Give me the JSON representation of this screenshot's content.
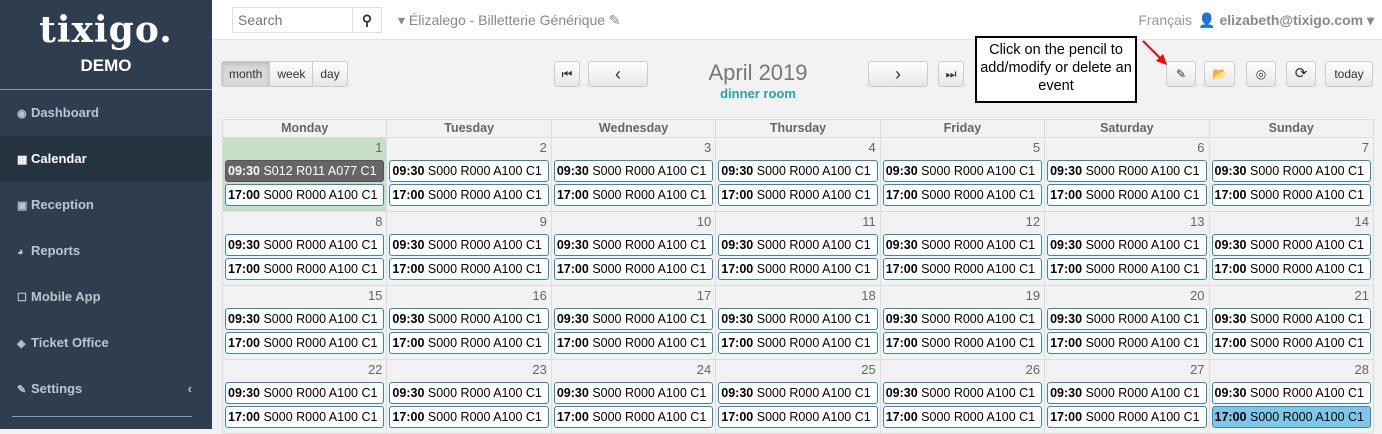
{
  "sidebar": {
    "brand": "tixigo.",
    "demo": "DEMO",
    "items": [
      {
        "label": "Dashboard",
        "icon": "dashboard-icon",
        "glyph": "◉"
      },
      {
        "label": "Calendar",
        "icon": "calendar-icon",
        "glyph": "▦",
        "active": true
      },
      {
        "label": "Reception",
        "icon": "reception-icon",
        "glyph": "▣"
      },
      {
        "label": "Reports",
        "icon": "pie-chart-icon",
        "glyph": "◕"
      },
      {
        "label": "Mobile App",
        "icon": "mobile-icon",
        "glyph": "☐"
      },
      {
        "label": "Ticket Office",
        "icon": "ticket-icon",
        "glyph": "◈"
      },
      {
        "label": "Settings",
        "icon": "wrench-icon",
        "glyph": "✎",
        "chevron": "‹"
      }
    ]
  },
  "topbar": {
    "search_placeholder": "Search",
    "organization": "▾ Élizalego - Billetterie Générique ✎",
    "language": "Français",
    "user": "👤 elizabeth@tixigo.com ▾"
  },
  "toolbar": {
    "views": [
      "month",
      "week",
      "day"
    ],
    "active_view": "month",
    "title": "April 2019",
    "subtitle": "dinner room",
    "today": "today",
    "first": "⏮",
    "prev": "‹",
    "next": "›",
    "last": "⏭",
    "edit": "✎",
    "open": "📂",
    "hide": "◎",
    "refresh": "⟳"
  },
  "tooltip": "Click on the pencil to add/modify or delete an event",
  "calendar": {
    "weekdays": [
      "Monday",
      "Tuesday",
      "Wednesday",
      "Thursday",
      "Friday",
      "Saturday",
      "Sunday"
    ],
    "today": 1,
    "default_events": [
      {
        "time": "09:30",
        "text": "S000 R000 A100 C1"
      },
      {
        "time": "17:00",
        "text": "S000 R000 A100 C1"
      }
    ],
    "special": {
      "1": [
        {
          "time": "09:30",
          "text": "S012 R011 A077 C1",
          "style": "dark"
        },
        {
          "time": "17:00",
          "text": "S000 R000 A100 C1"
        }
      ],
      "28": [
        {
          "time": "09:30",
          "text": "S000 R000 A100 C1"
        },
        {
          "time": "17:00",
          "text": "S000 R000 A100 C1",
          "style": "selected"
        }
      ]
    },
    "days": [
      1,
      2,
      3,
      4,
      5,
      6,
      7,
      8,
      9,
      10,
      11,
      12,
      13,
      14,
      15,
      16,
      17,
      18,
      19,
      20,
      21,
      22,
      23,
      24,
      25,
      26,
      27,
      28
    ]
  },
  "colors": {
    "sidebar": "#2e3e4e",
    "event_border": "#3a87ad",
    "today": "#c6dfc6",
    "selected_event": "#7dc8e8",
    "accent": "#26a69a"
  }
}
